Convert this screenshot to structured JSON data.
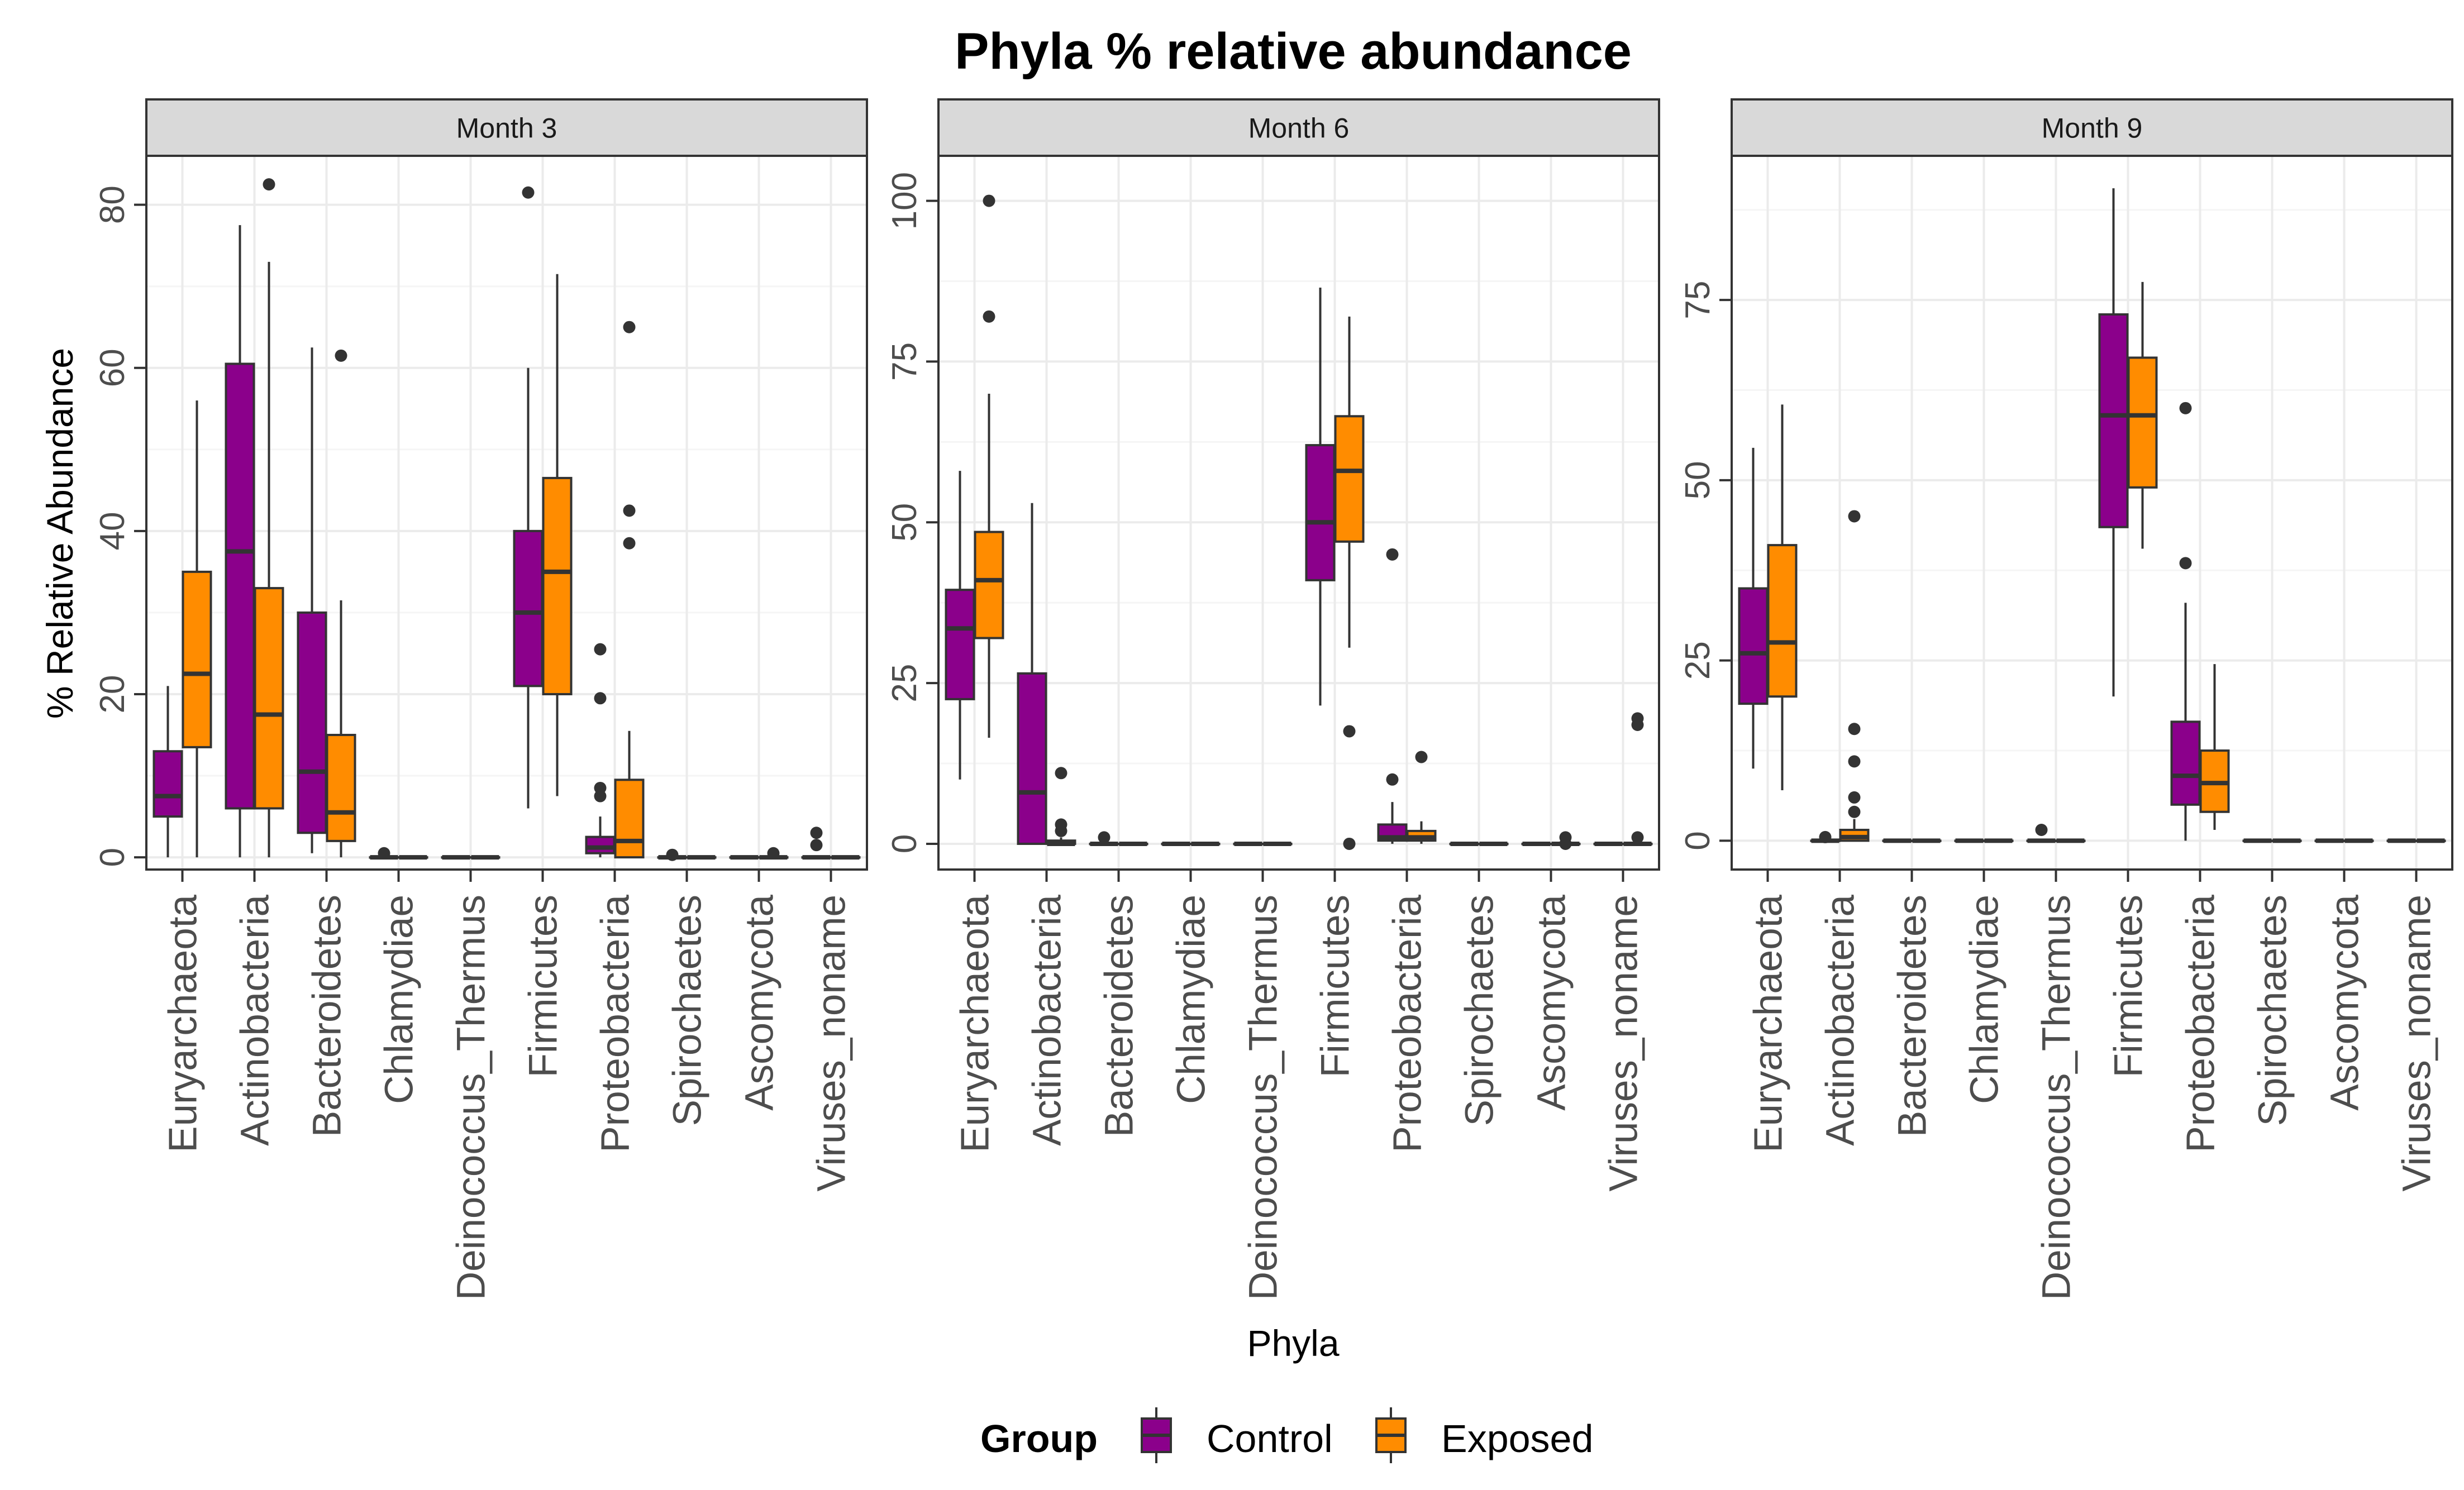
{
  "chart_data": {
    "type": "boxplot",
    "title": "Phyla % relative abundance",
    "xlabel": "Phyla",
    "ylabel": "% Relative Abundance",
    "categories": [
      "Euryarchaeota",
      "Actinobacteria",
      "Bacteroidetes",
      "Chlamydiae",
      "Deinococcus_Thermus",
      "Firmicutes",
      "Proteobacteria",
      "Spirochaetes",
      "Ascomycota",
      "Viruses_noname"
    ],
    "legend": {
      "title": "Group",
      "position": "bottom",
      "entries": [
        {
          "name": "Control",
          "color": "#8B008B"
        },
        {
          "name": "Exposed",
          "color": "#FF8C00"
        }
      ]
    },
    "grid": true,
    "facets": [
      {
        "label": "Month 3",
        "ylim": [
          -1.5,
          86
        ],
        "yticks": [
          0,
          20,
          40,
          60,
          80
        ],
        "series": [
          {
            "name": "Control",
            "boxes": [
              {
                "min": 0,
                "q1": 5,
                "median": 7.5,
                "q3": 13,
                "max": 21,
                "outliers": []
              },
              {
                "min": 0,
                "q1": 6,
                "median": 37.5,
                "q3": 60.5,
                "max": 77.5,
                "outliers": []
              },
              {
                "min": 0.5,
                "q1": 3,
                "median": 10.5,
                "q3": 30,
                "max": 62.5,
                "outliers": []
              },
              {
                "min": 0,
                "q1": 0,
                "median": 0,
                "q3": 0,
                "max": 0,
                "outliers": [
                  0.5
                ]
              },
              {
                "min": 0,
                "q1": 0,
                "median": 0,
                "q3": 0,
                "max": 0,
                "outliers": []
              },
              {
                "min": 6,
                "q1": 21,
                "median": 30,
                "q3": 40,
                "max": 60,
                "outliers": [
                  81.5
                ]
              },
              {
                "min": 0,
                "q1": 0.5,
                "median": 1.2,
                "q3": 2.5,
                "max": 5,
                "outliers": [
                  7.5,
                  8.5,
                  19.5,
                  25.5
                ]
              },
              {
                "min": 0,
                "q1": 0,
                "median": 0,
                "q3": 0,
                "max": 0,
                "outliers": [
                  0.3
                ]
              },
              {
                "min": 0,
                "q1": 0,
                "median": 0,
                "q3": 0,
                "max": 0,
                "outliers": []
              },
              {
                "min": 0,
                "q1": 0,
                "median": 0,
                "q3": 0,
                "max": 0,
                "outliers": [
                  1.5,
                  3
                ]
              }
            ]
          },
          {
            "name": "Exposed",
            "boxes": [
              {
                "min": 0,
                "q1": 13.5,
                "median": 22.5,
                "q3": 35,
                "max": 56,
                "outliers": []
              },
              {
                "min": 0,
                "q1": 6,
                "median": 17.5,
                "q3": 33,
                "max": 73,
                "outliers": [
                  82.5
                ]
              },
              {
                "min": 0,
                "q1": 2,
                "median": 5.5,
                "q3": 15,
                "max": 31.5,
                "outliers": [
                  61.5
                ]
              },
              {
                "min": 0,
                "q1": 0,
                "median": 0,
                "q3": 0,
                "max": 0,
                "outliers": []
              },
              {
                "min": 0,
                "q1": 0,
                "median": 0,
                "q3": 0,
                "max": 0,
                "outliers": []
              },
              {
                "min": 7.5,
                "q1": 20,
                "median": 35,
                "q3": 46.5,
                "max": 71.5,
                "outliers": []
              },
              {
                "min": 0,
                "q1": 0,
                "median": 2,
                "q3": 9.5,
                "max": 15.5,
                "outliers": [
                  38.5,
                  42.5,
                  65
                ]
              },
              {
                "min": 0,
                "q1": 0,
                "median": 0,
                "q3": 0,
                "max": 0,
                "outliers": []
              },
              {
                "min": 0,
                "q1": 0,
                "median": 0,
                "q3": 0,
                "max": 0,
                "outliers": [
                  0.5
                ]
              },
              {
                "min": 0,
                "q1": 0,
                "median": 0,
                "q3": 0,
                "max": 0,
                "outliers": []
              }
            ]
          }
        ]
      },
      {
        "label": "Month 6",
        "ylim": [
          -4,
          107
        ],
        "yticks": [
          0,
          25,
          50,
          75,
          100
        ],
        "series": [
          {
            "name": "Control",
            "boxes": [
              {
                "min": 10,
                "q1": 22.5,
                "median": 33.5,
                "q3": 39.5,
                "max": 58,
                "outliers": []
              },
              {
                "min": 0,
                "q1": 0,
                "median": 8,
                "q3": 26.5,
                "max": 53,
                "outliers": []
              },
              {
                "min": 0,
                "q1": 0,
                "median": 0,
                "q3": 0,
                "max": 0,
                "outliers": [
                  1
                ]
              },
              {
                "min": 0,
                "q1": 0,
                "median": 0,
                "q3": 0,
                "max": 0,
                "outliers": []
              },
              {
                "min": 0,
                "q1": 0,
                "median": 0,
                "q3": 0,
                "max": 0,
                "outliers": []
              },
              {
                "min": 21.5,
                "q1": 41,
                "median": 50,
                "q3": 62,
                "max": 86.5,
                "outliers": []
              },
              {
                "min": 0,
                "q1": 0.5,
                "median": 1,
                "q3": 3,
                "max": 6.5,
                "outliers": [
                  10,
                  45
                ]
              },
              {
                "min": 0,
                "q1": 0,
                "median": 0,
                "q3": 0,
                "max": 0,
                "outliers": []
              },
              {
                "min": 0,
                "q1": 0,
                "median": 0,
                "q3": 0,
                "max": 0,
                "outliers": []
              },
              {
                "min": 0,
                "q1": 0,
                "median": 0,
                "q3": 0,
                "max": 0,
                "outliers": []
              }
            ]
          },
          {
            "name": "Exposed",
            "boxes": [
              {
                "min": 16.5,
                "q1": 32,
                "median": 41,
                "q3": 48.5,
                "max": 70,
                "outliers": [
                  82,
                  100
                ]
              },
              {
                "min": 0,
                "q1": 0,
                "median": 0,
                "q3": 0.5,
                "max": 1,
                "outliers": [
                  2,
                  3,
                  11
                ]
              },
              {
                "min": 0,
                "q1": 0,
                "median": 0,
                "q3": 0,
                "max": 0,
                "outliers": []
              },
              {
                "min": 0,
                "q1": 0,
                "median": 0,
                "q3": 0,
                "max": 0,
                "outliers": []
              },
              {
                "min": 0,
                "q1": 0,
                "median": 0,
                "q3": 0,
                "max": 0,
                "outliers": []
              },
              {
                "min": 30.5,
                "q1": 47,
                "median": 58,
                "q3": 66.5,
                "max": 82,
                "outliers": [
                  0,
                  17.5
                ]
              },
              {
                "min": 0,
                "q1": 0.5,
                "median": 1,
                "q3": 2,
                "max": 3.5,
                "outliers": [
                  13.5
                ]
              },
              {
                "min": 0,
                "q1": 0,
                "median": 0,
                "q3": 0,
                "max": 0,
                "outliers": []
              },
              {
                "min": 0,
                "q1": 0,
                "median": 0,
                "q3": 0,
                "max": 0,
                "outliers": [
                  0,
                  1
                ]
              },
              {
                "min": 0,
                "q1": 0,
                "median": 0,
                "q3": 0,
                "max": 0,
                "outliers": [
                  1,
                  18.5,
                  19.5
                ]
              }
            ]
          }
        ]
      },
      {
        "label": "Month 9",
        "ylim": [
          -4,
          95
        ],
        "yticks": [
          0,
          25,
          50,
          75
        ],
        "series": [
          {
            "name": "Control",
            "boxes": [
              {
                "min": 10,
                "q1": 19,
                "median": 26,
                "q3": 35,
                "max": 54.5,
                "outliers": []
              },
              {
                "min": 0,
                "q1": 0,
                "median": 0,
                "q3": 0,
                "max": 0,
                "outliers": [
                  0.5
                ]
              },
              {
                "min": 0,
                "q1": 0,
                "median": 0,
                "q3": 0,
                "max": 0,
                "outliers": []
              },
              {
                "min": 0,
                "q1": 0,
                "median": 0,
                "q3": 0,
                "max": 0,
                "outliers": []
              },
              {
                "min": 0,
                "q1": 0,
                "median": 0,
                "q3": 0,
                "max": 0,
                "outliers": [
                  1.5
                ]
              },
              {
                "min": 20,
                "q1": 43.5,
                "median": 59,
                "q3": 73,
                "max": 90.5,
                "outliers": []
              },
              {
                "min": 0,
                "q1": 5,
                "median": 9,
                "q3": 16.5,
                "max": 33,
                "outliers": [
                  38.5,
                  60
                ]
              },
              {
                "min": 0,
                "q1": 0,
                "median": 0,
                "q3": 0,
                "max": 0,
                "outliers": []
              },
              {
                "min": 0,
                "q1": 0,
                "median": 0,
                "q3": 0,
                "max": 0,
                "outliers": []
              },
              {
                "min": 0,
                "q1": 0,
                "median": 0,
                "q3": 0,
                "max": 0,
                "outliers": []
              }
            ]
          },
          {
            "name": "Exposed",
            "boxes": [
              {
                "min": 7,
                "q1": 20,
                "median": 27.5,
                "q3": 41,
                "max": 60.5,
                "outliers": []
              },
              {
                "min": 0,
                "q1": 0,
                "median": 0.5,
                "q3": 1.5,
                "max": 3,
                "outliers": [
                  4,
                  6,
                  11,
                  15.5,
                  45
                ]
              },
              {
                "min": 0,
                "q1": 0,
                "median": 0,
                "q3": 0,
                "max": 0,
                "outliers": []
              },
              {
                "min": 0,
                "q1": 0,
                "median": 0,
                "q3": 0,
                "max": 0,
                "outliers": []
              },
              {
                "min": 0,
                "q1": 0,
                "median": 0,
                "q3": 0,
                "max": 0,
                "outliers": []
              },
              {
                "min": 40.5,
                "q1": 49,
                "median": 59,
                "q3": 67,
                "max": 77.5,
                "outliers": []
              },
              {
                "min": 1.5,
                "q1": 4,
                "median": 8,
                "q3": 12.5,
                "max": 24.5,
                "outliers": []
              },
              {
                "min": 0,
                "q1": 0,
                "median": 0,
                "q3": 0,
                "max": 0,
                "outliers": []
              },
              {
                "min": 0,
                "q1": 0,
                "median": 0,
                "q3": 0,
                "max": 0,
                "outliers": []
              },
              {
                "min": 0,
                "q1": 0,
                "median": 0,
                "q3": 0,
                "max": 0,
                "outliers": []
              }
            ]
          }
        ]
      }
    ]
  }
}
